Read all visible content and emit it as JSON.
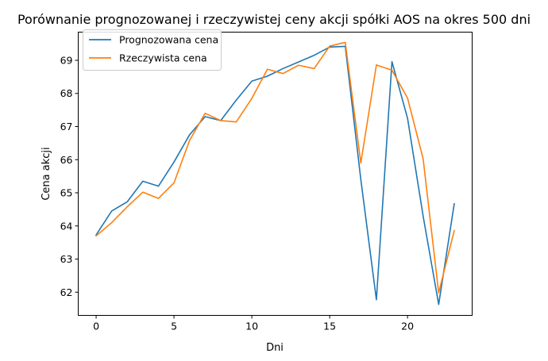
{
  "chart_data": {
    "type": "line",
    "title": "Porównanie prognozowanej i rzeczywistej ceny akcji spółki AOS na okres 500 dni",
    "xlabel": "Dni",
    "ylabel": "Cena akcji",
    "xlim": [
      -1.15,
      24.15
    ],
    "ylim": [
      61.3,
      69.85
    ],
    "xticks": [
      0,
      5,
      10,
      15,
      20
    ],
    "yticks": [
      62,
      63,
      64,
      65,
      66,
      67,
      68,
      69
    ],
    "grid": false,
    "legend_position": "top-left",
    "x": [
      0,
      1,
      2,
      3,
      4,
      5,
      6,
      7,
      8,
      9,
      10,
      11,
      12,
      13,
      14,
      15,
      16,
      17,
      18,
      19,
      20,
      21,
      22,
      23
    ],
    "series": [
      {
        "name": "Prognozowana cena",
        "color": "#1f77b4",
        "values": [
          63.73,
          64.45,
          64.73,
          65.35,
          65.2,
          65.93,
          66.75,
          67.3,
          67.18,
          67.8,
          68.37,
          68.52,
          68.75,
          68.95,
          69.15,
          69.4,
          69.42,
          65.4,
          61.77,
          68.96,
          67.25,
          64.3,
          61.63,
          64.67
        ]
      },
      {
        "name": "Rzeczywista cena",
        "color": "#ff7f0e",
        "values": [
          63.7,
          64.1,
          64.58,
          65.02,
          64.83,
          65.3,
          66.58,
          67.4,
          67.18,
          67.14,
          67.85,
          68.73,
          68.6,
          68.85,
          68.75,
          69.43,
          69.54,
          65.9,
          68.86,
          68.7,
          67.86,
          66.03,
          61.98,
          63.86
        ]
      }
    ]
  }
}
